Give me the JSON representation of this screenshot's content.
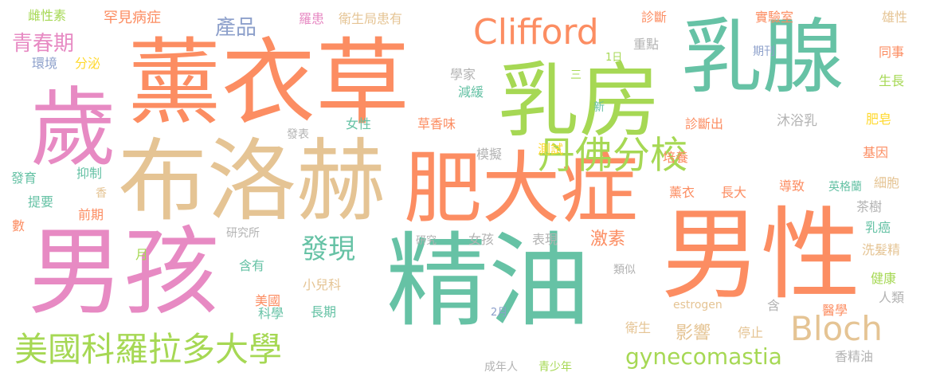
{
  "colors": {
    "pink": "#e78ac3",
    "orange": "#fc8d62",
    "teal": "#66c2a5",
    "green": "#a6d854",
    "tan": "#e5c494",
    "blue": "#8da0cb",
    "yellow": "#ffd92f",
    "grey": "#b3b3b3"
  },
  "words": [
    "薰衣草",
    "精油",
    "男孩",
    "男性",
    "布洛赫",
    "肥大症",
    "乳腺",
    "乳房",
    "歲",
    "丹佛分校",
    "美國科羅拉多大學",
    "Clifford",
    "Bloch",
    "gynecomastia",
    "發現",
    "青春期",
    "產品",
    "激素",
    "影響",
    "雌性素",
    "罕見病症",
    "羅患",
    "衛生局患有",
    "診斷",
    "實驗室",
    "雄性",
    "重點",
    "1日",
    "期刊",
    "同事",
    "環境",
    "分泌",
    "學家",
    "三",
    "減緩",
    "生長",
    "新",
    "沐浴乳",
    "肥皂",
    "發表",
    "女性",
    "草香味",
    "診斷出",
    "模擬",
    "測試",
    "培養",
    "基因",
    "發育",
    "抑制",
    "香",
    "薰衣",
    "長大",
    "導致",
    "英格蘭",
    "細胞",
    "提要",
    "前期",
    "茶樹",
    "數",
    "研究所",
    "研究",
    "女孩",
    "表現",
    "乳癌",
    "月",
    "含有",
    "類似",
    "洗髮精",
    "小兒科",
    "健康",
    "美國",
    "estrogen",
    "含",
    "人類",
    "科學",
    "長期",
    "2月",
    "醫學",
    "衛生",
    "停止",
    "香精油",
    "成年人",
    "青少年"
  ]
}
